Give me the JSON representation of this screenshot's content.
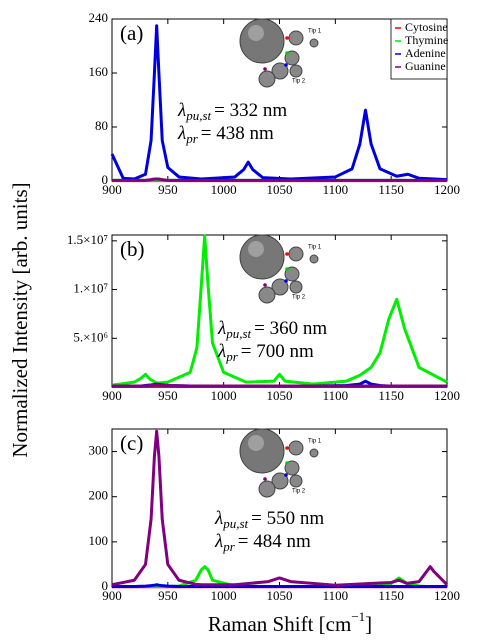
{
  "figure": {
    "ylabel": "Normalized Intensity [arb. units]",
    "xlabel": {
      "text": "Raman Shift [cm",
      "sup": "−1",
      "close": "]"
    }
  },
  "chart_data": [
    {
      "type": "line",
      "panel_label": "(a)",
      "legend": "upper right",
      "inset_labels": [
        "Tip 1",
        "Tip 2"
      ],
      "annotations": [
        {
          "symbol": "λ",
          "sub": "pu,st",
          "rest": "= 332 nm"
        },
        {
          "symbol": "λ",
          "sub": "pr",
          "rest": "= 438 nm"
        }
      ],
      "x": [
        900,
        910,
        920,
        930,
        935,
        938,
        940,
        942,
        945,
        950,
        960,
        980,
        1010,
        1018,
        1022,
        1026,
        1035,
        1060,
        1100,
        1115,
        1122,
        1127,
        1132,
        1140,
        1155,
        1165,
        1175,
        1200
      ],
      "xlim": [
        900,
        1200
      ],
      "xticks": [
        900,
        950,
        1000,
        1050,
        1100,
        1150,
        1200
      ],
      "ylim": [
        0,
        240
      ],
      "yticks": [
        0,
        80,
        160,
        240
      ],
      "series": [
        {
          "name": "Cytosine",
          "color": "#ff0000",
          "values": [
            0.5,
            0.5,
            0.5,
            0.5,
            0.5,
            0.5,
            0.5,
            0.5,
            0.5,
            0.5,
            0.5,
            0.5,
            0.5,
            0.5,
            0.5,
            0.5,
            0.5,
            0.5,
            0.5,
            0.5,
            0.5,
            0.5,
            0.5,
            0.5,
            0.5,
            0.5,
            0.5,
            0.5
          ]
        },
        {
          "name": "Thymine",
          "color": "#00ee00",
          "values": [
            1,
            1,
            1,
            1,
            1,
            1,
            1,
            1,
            1,
            1,
            1,
            2,
            1,
            1,
            1,
            1,
            1,
            1,
            1,
            1,
            1,
            1,
            1,
            1,
            1,
            1,
            1,
            1
          ]
        },
        {
          "name": "Adenine",
          "color": "#0000dd",
          "values": [
            40,
            4,
            3,
            10,
            60,
            160,
            230,
            160,
            60,
            20,
            6,
            3,
            6,
            17,
            28,
            17,
            5,
            3,
            6,
            18,
            55,
            105,
            55,
            18,
            7,
            10,
            4,
            2
          ]
        },
        {
          "name": "Guanine",
          "color": "#800080",
          "values": [
            1,
            1,
            1,
            1,
            2,
            3,
            3,
            3,
            2,
            1,
            1,
            1,
            1,
            1,
            1,
            1,
            1,
            1,
            1,
            1,
            1,
            1,
            1,
            1,
            1,
            1,
            1,
            1
          ]
        }
      ]
    },
    {
      "type": "line",
      "panel_label": "(b)",
      "inset_labels": [
        "Tip 1",
        "Tip 2"
      ],
      "annotations": [
        {
          "symbol": "λ",
          "sub": "pu,st",
          "rest": "= 360 nm"
        },
        {
          "symbol": "λ",
          "sub": "pr",
          "rest": "= 700 nm"
        }
      ],
      "x": [
        900,
        920,
        926,
        930,
        934,
        940,
        950,
        970,
        976,
        980,
        983,
        986,
        990,
        1000,
        1020,
        1045,
        1050,
        1055,
        1080,
        1110,
        1122,
        1127,
        1132,
        1140,
        1148,
        1155,
        1162,
        1175,
        1200
      ],
      "xlim": [
        900,
        1200
      ],
      "xticks": [
        900,
        950,
        1000,
        1050,
        1100,
        1150,
        1200
      ],
      "ylim": [
        0,
        15600000
      ],
      "yticks": [
        {
          "value": 5000000,
          "label": "5.×10⁶"
        },
        {
          "value": 10000000,
          "label": "1.×10⁷"
        },
        {
          "value": 15000000,
          "label": "1.5×10⁷"
        }
      ],
      "series": [
        {
          "color": "#ff0000",
          "values": [
            50000,
            50000,
            50000,
            50000,
            50000,
            50000,
            50000,
            50000,
            50000,
            50000,
            50000,
            50000,
            50000,
            50000,
            50000,
            50000,
            50000,
            50000,
            50000,
            50000,
            50000,
            50000,
            50000,
            50000,
            50000,
            50000,
            50000,
            50000,
            50000
          ]
        },
        {
          "color": "#00ee00",
          "values": [
            200000,
            500000,
            900000,
            1300000,
            800000,
            400000,
            500000,
            1500000,
            4000000,
            10500000,
            15500000,
            10500000,
            4500000,
            1500000,
            500000,
            600000,
            1300000,
            600000,
            300000,
            600000,
            1200000,
            1600000,
            2000000,
            3500000,
            7000000,
            9000000,
            6000000,
            2000000,
            500000
          ]
        },
        {
          "color": "#0000dd",
          "values": [
            100000,
            100000,
            100000,
            150000,
            200000,
            300000,
            150000,
            100000,
            100000,
            100000,
            100000,
            100000,
            100000,
            100000,
            100000,
            100000,
            100000,
            100000,
            100000,
            150000,
            300000,
            600000,
            300000,
            150000,
            100000,
            100000,
            100000,
            100000,
            100000
          ]
        },
        {
          "color": "#800080",
          "values": [
            100000,
            100000,
            100000,
            100000,
            150000,
            200000,
            150000,
            100000,
            100000,
            100000,
            100000,
            100000,
            100000,
            100000,
            100000,
            100000,
            100000,
            100000,
            100000,
            100000,
            100000,
            100000,
            100000,
            100000,
            100000,
            100000,
            100000,
            100000,
            100000
          ]
        }
      ]
    },
    {
      "type": "line",
      "panel_label": "(c)",
      "inset_labels": [
        "Tip 1",
        "Tip 2"
      ],
      "annotations": [
        {
          "symbol": "λ",
          "sub": "pu,st",
          "rest": "= 550 nm"
        },
        {
          "symbol": "λ",
          "sub": "pr",
          "rest": "= 484 nm"
        }
      ],
      "x": [
        900,
        920,
        930,
        935,
        938,
        940,
        942,
        945,
        950,
        960,
        975,
        980,
        983,
        986,
        990,
        1010,
        1040,
        1050,
        1060,
        1100,
        1150,
        1157,
        1164,
        1175,
        1182,
        1185,
        1188,
        1200
      ],
      "xlim": [
        900,
        1200
      ],
      "xticks": [
        900,
        950,
        1000,
        1050,
        1100,
        1150,
        1200
      ],
      "ylim": [
        0,
        350
      ],
      "yticks": [
        0,
        100,
        200,
        300
      ],
      "series": [
        {
          "color": "#ff0000",
          "values": [
            0.5,
            0.5,
            0.5,
            0.5,
            0.5,
            0.5,
            0.5,
            0.5,
            0.5,
            0.5,
            0.5,
            0.5,
            0.5,
            0.5,
            0.5,
            0.5,
            0.5,
            0.5,
            0.5,
            0.5,
            0.5,
            0.5,
            0.5,
            0.5,
            0.5,
            0.5,
            0.5,
            0.5
          ]
        },
        {
          "color": "#00ee00",
          "values": [
            1,
            1,
            1,
            1,
            1,
            1,
            1,
            1,
            1,
            2,
            15,
            38,
            45,
            38,
            15,
            2,
            1,
            1,
            1,
            1,
            8,
            20,
            8,
            2,
            1,
            1,
            1,
            1
          ]
        },
        {
          "color": "#0000dd",
          "values": [
            1,
            1,
            2,
            3,
            4,
            5,
            4,
            3,
            2,
            1,
            1,
            1,
            1,
            1,
            1,
            1,
            1,
            1,
            1,
            1,
            1,
            1,
            1,
            1,
            1,
            1,
            1,
            1
          ]
        },
        {
          "color": "#800080",
          "values": [
            5,
            15,
            50,
            150,
            290,
            345,
            290,
            150,
            50,
            15,
            6,
            5,
            5,
            5,
            5,
            5,
            12,
            20,
            12,
            4,
            10,
            15,
            8,
            12,
            35,
            45,
            35,
            5
          ]
        }
      ]
    }
  ]
}
